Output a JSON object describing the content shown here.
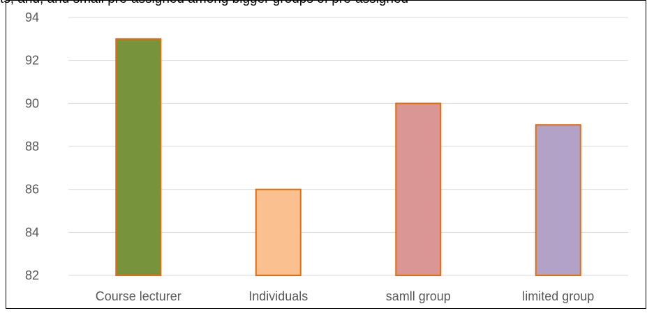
{
  "caption": "ts, and, and small pre-assigned among bigger groups of pre-assigned",
  "chart_data": {
    "type": "bar",
    "title": "",
    "xlabel": "",
    "ylabel": "",
    "categories": [
      "Course lecturer",
      "Individuals",
      "samll group",
      "limited group"
    ],
    "values": [
      93,
      86,
      90,
      89
    ],
    "ylim": [
      82,
      94
    ],
    "yticks": [
      "82",
      "84",
      "86",
      "88",
      "90",
      "92",
      "94"
    ],
    "grid": "horizontal",
    "legend": "none",
    "colors": {
      "bars": [
        "#77933c",
        "#fac090",
        "#d99694",
        "#b3a2c7"
      ],
      "bar_outline": "#e46c0a",
      "grid": "#d9d9d9",
      "axis": "#d9d9d9",
      "frame": "#000000",
      "tick_text": "#595959"
    }
  }
}
